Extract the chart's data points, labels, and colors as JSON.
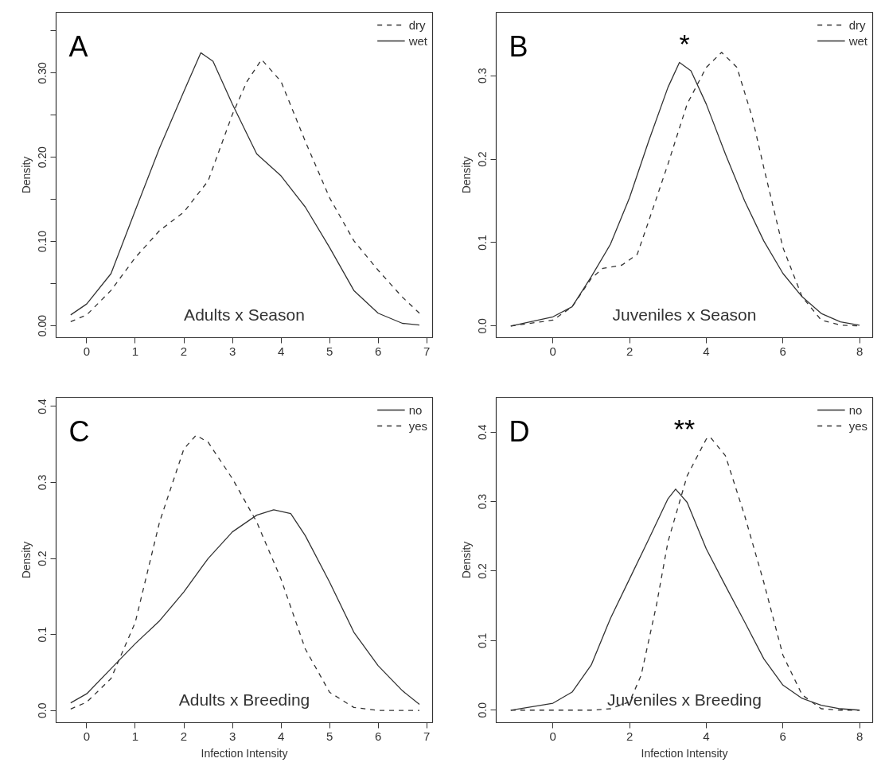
{
  "chart_data": [
    {
      "type": "line",
      "title": "A",
      "ylabel": "Density",
      "annotations": [
        "Adults x Season"
      ],
      "legend": "top right",
      "grid": false,
      "xlim": [
        -0.63,
        7.12
      ],
      "ylim": [
        -0.014,
        0.372
      ],
      "xticks": [
        0,
        1,
        2,
        3,
        4,
        5,
        6,
        7
      ],
      "yticks": [
        {
          "value": 0,
          "label": "0.00"
        },
        {
          "value": 0.05,
          "label": null
        },
        {
          "value": 0.1,
          "label": "0.10"
        },
        {
          "value": 0.15,
          "label": null
        },
        {
          "value": 0.2,
          "label": "0.20"
        },
        {
          "value": 0.25,
          "label": null
        },
        {
          "value": 0.3,
          "label": "0.30"
        },
        {
          "value": 0.35,
          "label": null
        }
      ],
      "series": [
        {
          "name": "dry",
          "color": "#333333",
          "line_style": "dashed",
          "x": [
            -0.33,
            0,
            0.5,
            1,
            1.5,
            2,
            2.5,
            3,
            3.3,
            3.6,
            4,
            4.5,
            5,
            5.5,
            6,
            6.5,
            6.85
          ],
          "values": [
            0.005,
            0.013,
            0.042,
            0.081,
            0.113,
            0.135,
            0.172,
            0.251,
            0.29,
            0.316,
            0.29,
            0.219,
            0.152,
            0.101,
            0.066,
            0.034,
            0.015
          ]
        },
        {
          "name": "wet",
          "color": "#333333",
          "line_style": "solid",
          "x": [
            -0.33,
            0,
            0.5,
            1,
            1.5,
            2,
            2.35,
            2.6,
            3,
            3.5,
            4,
            4.5,
            5,
            5.5,
            6,
            6.5,
            6.85
          ],
          "values": [
            0.013,
            0.026,
            0.062,
            0.137,
            0.211,
            0.278,
            0.324,
            0.314,
            0.263,
            0.204,
            0.178,
            0.141,
            0.093,
            0.042,
            0.015,
            0.003,
            0.001
          ]
        }
      ]
    },
    {
      "type": "line",
      "title": "B",
      "ylabel": "Density",
      "annotations": [
        "Juveniles x Season",
        "*"
      ],
      "legend": "top right",
      "grid": false,
      "xlim": [
        -1.48,
        8.34
      ],
      "ylim": [
        -0.014,
        0.376
      ],
      "xticks": [
        0,
        2,
        4,
        6,
        8
      ],
      "yticks": [
        {
          "value": 0,
          "label": "0.0"
        },
        {
          "value": 0.1,
          "label": "0.1"
        },
        {
          "value": 0.2,
          "label": "0.2"
        },
        {
          "value": 0.3,
          "label": "0.3"
        }
      ],
      "series": [
        {
          "name": "dry",
          "color": "#333333",
          "line_style": "dashed",
          "x": [
            -1.1,
            0,
            0.5,
            1,
            1.3,
            1.8,
            2.2,
            2.5,
            3,
            3.5,
            4,
            4.4,
            4.8,
            5.2,
            5.5,
            6,
            6.5,
            7,
            7.5,
            8
          ],
          "values": [
            0.0,
            0.007,
            0.023,
            0.057,
            0.069,
            0.073,
            0.086,
            0.126,
            0.194,
            0.266,
            0.31,
            0.328,
            0.31,
            0.25,
            0.19,
            0.094,
            0.035,
            0.007,
            0.001,
            0.0
          ]
        },
        {
          "name": "wet",
          "color": "#333333",
          "line_style": "solid",
          "x": [
            -1.1,
            0,
            0.5,
            1,
            1.5,
            2,
            2.5,
            3,
            3.3,
            3.6,
            4,
            4.5,
            5,
            5.5,
            6,
            6.5,
            7,
            7.5,
            8
          ],
          "values": [
            0.0,
            0.011,
            0.023,
            0.059,
            0.098,
            0.154,
            0.222,
            0.286,
            0.316,
            0.306,
            0.266,
            0.206,
            0.15,
            0.102,
            0.063,
            0.035,
            0.015,
            0.005,
            0.001
          ]
        }
      ]
    },
    {
      "type": "line",
      "title": "C",
      "xlabel": "Infection Intensity",
      "ylabel": "Density",
      "annotations": [
        "Adults x Breeding"
      ],
      "legend": "top right",
      "grid": false,
      "xlim": [
        -0.63,
        7.12
      ],
      "ylim": [
        -0.016,
        0.412
      ],
      "xticks": [
        0,
        1,
        2,
        3,
        4,
        5,
        6,
        7
      ],
      "yticks": [
        {
          "value": 0,
          "label": "0.0"
        },
        {
          "value": 0.1,
          "label": "0.1"
        },
        {
          "value": 0.2,
          "label": "0.2"
        },
        {
          "value": 0.3,
          "label": "0.3"
        },
        {
          "value": 0.4,
          "label": "0.4"
        }
      ],
      "series": [
        {
          "name": "no",
          "color": "#333333",
          "line_style": "solid",
          "x": [
            -0.33,
            0,
            0.5,
            1,
            1.5,
            2,
            2.5,
            3,
            3.5,
            3.85,
            4.2,
            4.5,
            5,
            5.5,
            6,
            6.5,
            6.85
          ],
          "values": [
            0.01,
            0.022,
            0.055,
            0.088,
            0.118,
            0.156,
            0.2,
            0.235,
            0.257,
            0.264,
            0.259,
            0.23,
            0.169,
            0.103,
            0.059,
            0.026,
            0.008
          ]
        },
        {
          "name": "yes",
          "color": "#333333",
          "line_style": "dashed",
          "x": [
            -0.33,
            0,
            0.5,
            1,
            1.5,
            2,
            2.25,
            2.5,
            3,
            3.5,
            4,
            4.5,
            5,
            5.5,
            6,
            6.85
          ],
          "values": [
            0.002,
            0.011,
            0.042,
            0.116,
            0.248,
            0.344,
            0.362,
            0.353,
            0.305,
            0.248,
            0.173,
            0.081,
            0.024,
            0.004,
            0.0,
            0.0
          ]
        }
      ]
    },
    {
      "type": "line",
      "title": "D",
      "xlabel": "Infection Intensity",
      "ylabel": "Density",
      "annotations": [
        "Juveniles x Breeding",
        "**"
      ],
      "legend": "top right",
      "grid": false,
      "xlim": [
        -1.48,
        8.34
      ],
      "ylim": [
        -0.018,
        0.45
      ],
      "xticks": [
        0,
        2,
        4,
        6,
        8
      ],
      "yticks": [
        {
          "value": 0,
          "label": "0.0"
        },
        {
          "value": 0.1,
          "label": "0.1"
        },
        {
          "value": 0.2,
          "label": "0.2"
        },
        {
          "value": 0.3,
          "label": "0.3"
        },
        {
          "value": 0.4,
          "label": "0.4"
        }
      ],
      "series": [
        {
          "name": "no",
          "color": "#333333",
          "line_style": "solid",
          "x": [
            -1.1,
            0,
            0.5,
            1,
            1.5,
            2,
            2.5,
            3,
            3.2,
            3.5,
            4,
            4.5,
            5,
            5.5,
            6,
            6.5,
            7,
            7.5,
            8
          ],
          "values": [
            0.0,
            0.01,
            0.026,
            0.065,
            0.132,
            0.189,
            0.246,
            0.304,
            0.318,
            0.299,
            0.232,
            0.179,
            0.127,
            0.074,
            0.036,
            0.017,
            0.007,
            0.002,
            0.0
          ]
        },
        {
          "name": "yes",
          "color": "#333333",
          "line_style": "dashed",
          "x": [
            -1.1,
            0,
            1,
            1.5,
            2,
            2.3,
            2.7,
            3,
            3.5,
            4,
            4.1,
            4.5,
            5,
            5.5,
            6,
            6.5,
            7,
            7.5,
            8
          ],
          "values": [
            0.0,
            0.0,
            0.0,
            0.002,
            0.012,
            0.05,
            0.151,
            0.242,
            0.337,
            0.39,
            0.393,
            0.366,
            0.28,
            0.184,
            0.079,
            0.022,
            0.002,
            0.0,
            0.0
          ]
        }
      ]
    }
  ]
}
